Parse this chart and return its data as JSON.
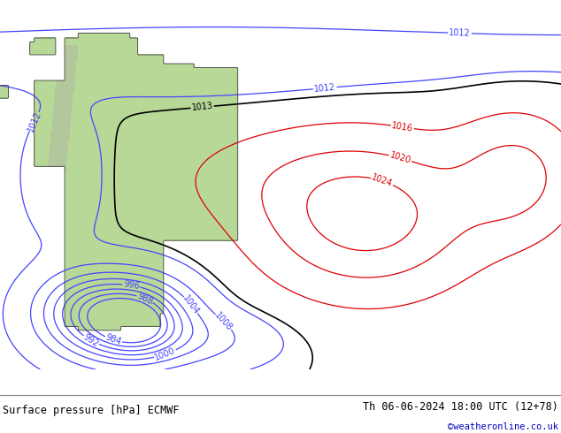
{
  "title_left": "Surface pressure [hPa] ECMWF",
  "title_right": "Th 06-06-2024 18:00 UTC (12+78)",
  "credit": "©weatheronline.co.uk",
  "ocean_color": "#d0dce8",
  "land_color": "#b8d898",
  "land_color2": "#c0d8a0",
  "footer_bg": "#ffffff",
  "title_color": "#000000",
  "credit_color": "#0000bb",
  "fig_width": 6.34,
  "fig_height": 4.9,
  "dpi": 100,
  "blue_color": "#4444ff",
  "red_color": "#dd0000",
  "black_color": "#000000",
  "contour_lw": 0.9,
  "label_fontsize": 7
}
